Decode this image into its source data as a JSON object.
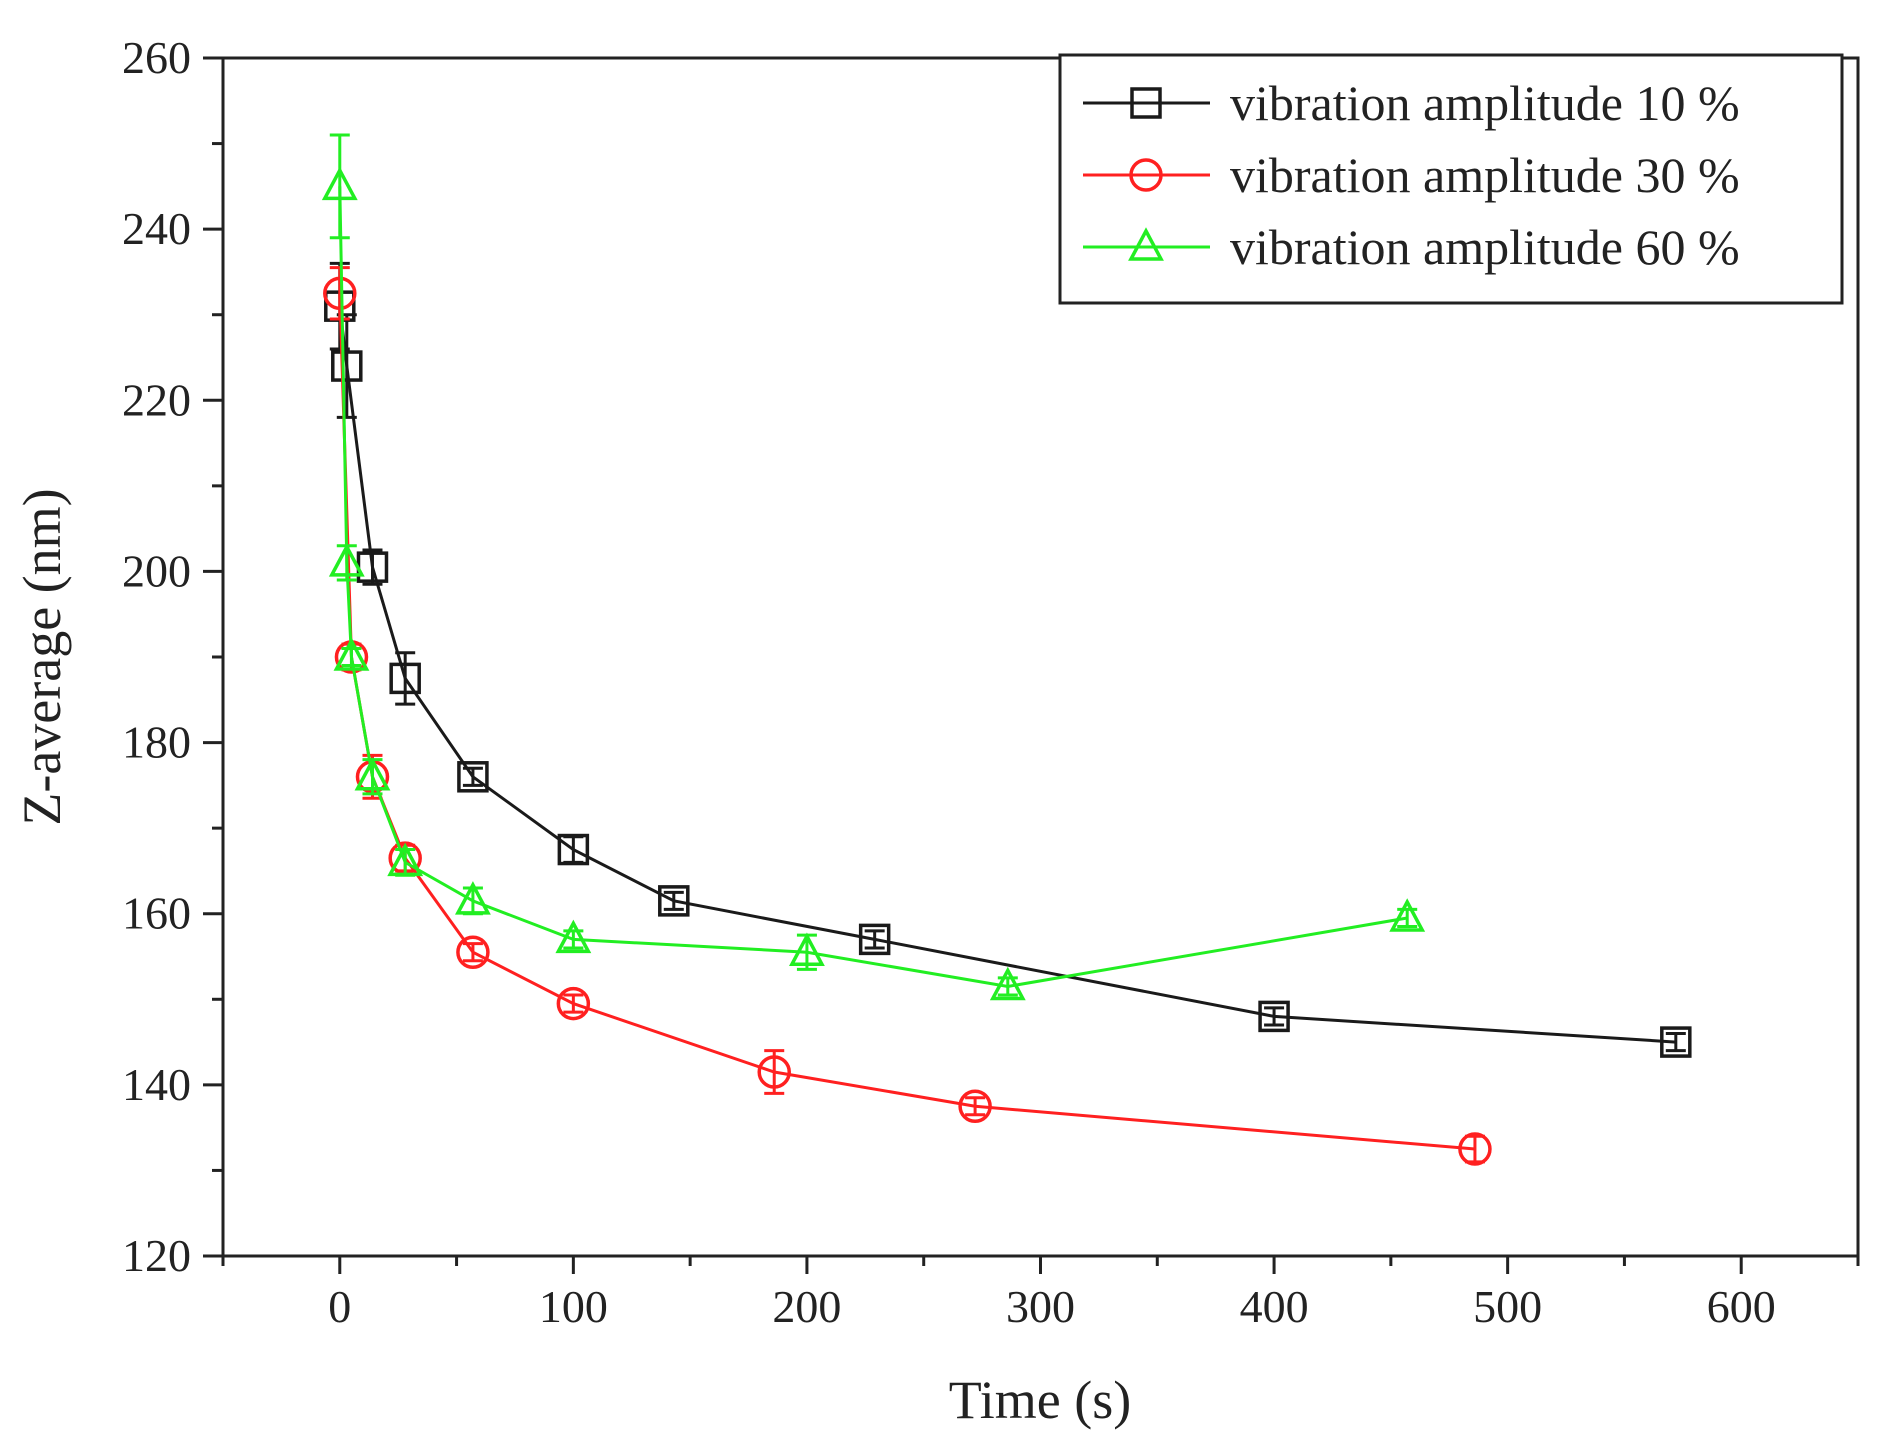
{
  "chart_data": {
    "type": "line",
    "title": "",
    "xlabel": "Time (s)",
    "ylabel": "Z-average (nm)",
    "xlim": [
      -50,
      650
    ],
    "ylim": [
      120,
      260
    ],
    "xticks": [
      0,
      100,
      200,
      300,
      400,
      500,
      600
    ],
    "yticks": [
      120,
      140,
      160,
      180,
      200,
      220,
      240,
      260
    ],
    "xtick_labels": [
      "0",
      "100",
      "200",
      "300",
      "400",
      "500",
      "600"
    ],
    "ytick_labels": [
      "120",
      "140",
      "160",
      "180",
      "200",
      "220",
      "240",
      "260"
    ],
    "grid": false,
    "legend_position": "top-right",
    "series": [
      {
        "name": "vibration amplitude 10 %",
        "color": "#1a1a1a",
        "marker": "square",
        "x": [
          0,
          3,
          14,
          28,
          57,
          100,
          143,
          229,
          400,
          572
        ],
        "y": [
          231,
          224,
          200.5,
          187.5,
          176,
          167.5,
          161.5,
          157,
          148,
          145
        ],
        "err": [
          5,
          6,
          2,
          3,
          1,
          1.5,
          1,
          1,
          1,
          1
        ]
      },
      {
        "name": "vibration amplitude 30 %",
        "color": "#ff2020",
        "marker": "circle",
        "x": [
          0,
          5,
          14,
          28,
          57,
          100,
          186,
          272,
          486
        ],
        "y": [
          232.5,
          190,
          176,
          166.5,
          155.5,
          149.5,
          141.5,
          137.5,
          132.5
        ],
        "err": [
          3,
          1.5,
          2.5,
          1.5,
          1,
          1,
          2.5,
          1,
          1.5
        ]
      },
      {
        "name": "vibration amplitude 60 %",
        "color": "#22ee22",
        "marker": "triangle",
        "x": [
          0,
          3,
          5,
          14,
          28,
          57,
          100,
          200,
          286,
          457
        ],
        "y": [
          245,
          201,
          190,
          176,
          166,
          161.5,
          157,
          155.5,
          151.5,
          159.5
        ],
        "err": [
          6,
          2,
          1,
          2,
          1.5,
          1.5,
          1,
          2,
          1,
          1
        ]
      }
    ]
  }
}
